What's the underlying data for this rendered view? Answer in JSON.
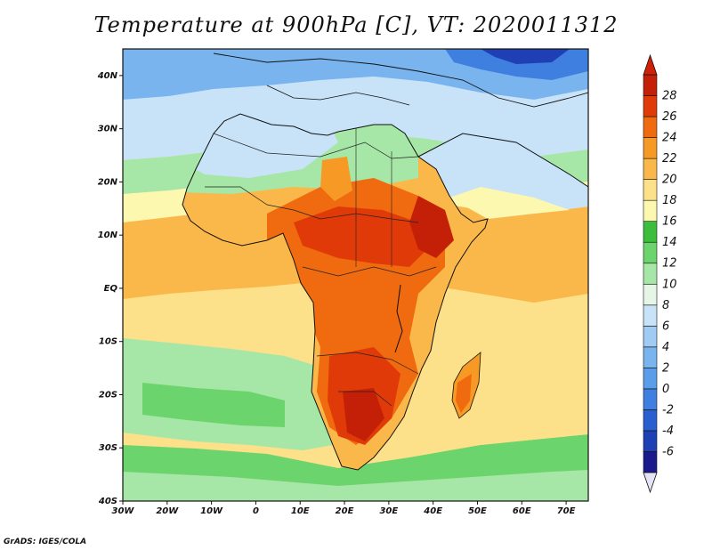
{
  "map": {
    "title": "Temperature at 900hPa [C], VT: 2020011312",
    "variable": "temperature",
    "level": "900hPa",
    "unit": "C",
    "valid_time": "2020011312",
    "region": "Africa",
    "extent": {
      "lon_min": -30,
      "lon_max": 75,
      "lat_min": -40,
      "lat_max": 45
    },
    "lon_ticks": [
      {
        "lon": -30,
        "label": "30W"
      },
      {
        "lon": -20,
        "label": "20W"
      },
      {
        "lon": -10,
        "label": "10W"
      },
      {
        "lon": 0,
        "label": "0"
      },
      {
        "lon": 10,
        "label": "10E"
      },
      {
        "lon": 20,
        "label": "20E"
      },
      {
        "lon": 30,
        "label": "30E"
      },
      {
        "lon": 40,
        "label": "40E"
      },
      {
        "lon": 50,
        "label": "50E"
      },
      {
        "lon": 60,
        "label": "60E"
      },
      {
        "lon": 70,
        "label": "70E"
      }
    ],
    "lat_ticks": [
      {
        "lat": 40,
        "label": "40N"
      },
      {
        "lat": 30,
        "label": "30N"
      },
      {
        "lat": 20,
        "label": "20N"
      },
      {
        "lat": 10,
        "label": "10N"
      },
      {
        "lat": 0,
        "label": "EQ"
      },
      {
        "lat": -10,
        "label": "10S"
      },
      {
        "lat": -20,
        "label": "20S"
      },
      {
        "lat": -30,
        "label": "30S"
      },
      {
        "lat": -40,
        "label": "40S"
      }
    ]
  },
  "colorbar": {
    "levels": [
      -6,
      -4,
      -2,
      0,
      2,
      4,
      6,
      8,
      10,
      12,
      14,
      16,
      18,
      20,
      22,
      24,
      26,
      28
    ],
    "labels": [
      "-6",
      "-4",
      "-2",
      "0",
      "2",
      "4",
      "6",
      "8",
      "10",
      "12",
      "14",
      "16",
      "18",
      "20",
      "22",
      "24",
      "26",
      "28"
    ],
    "colors": [
      "#1a1a8c",
      "#1f3fb5",
      "#2a5fd0",
      "#3f7fe0",
      "#5a9de8",
      "#7ab4ee",
      "#a0cbf3",
      "#c8e3f8",
      "#e6f6e6",
      "#a6e6a6",
      "#6cd46c",
      "#3cbe3c",
      "#fdf8b0",
      "#fde08a",
      "#fbb84a",
      "#f79a25",
      "#f06a10",
      "#e03a08",
      "#c42008"
    ],
    "under_color": "#e4e4f6",
    "over_color": "#d02008"
  },
  "credit": "GrADS: IGES/COLA"
}
